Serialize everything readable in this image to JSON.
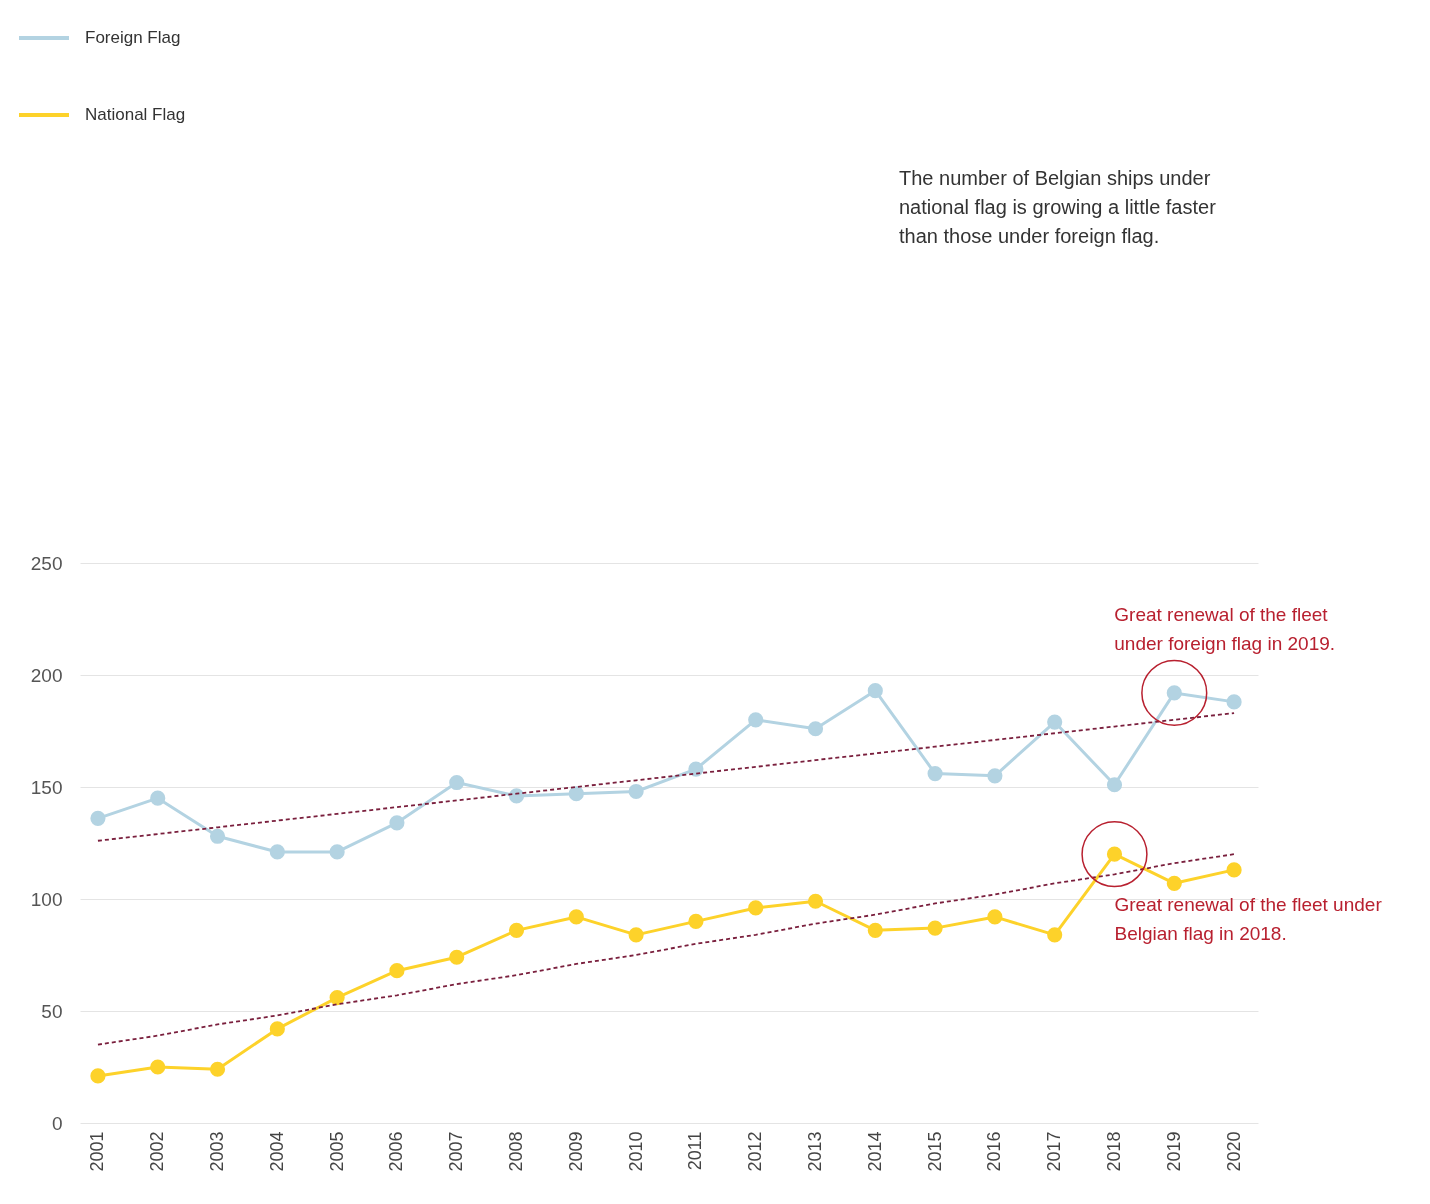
{
  "chart_data": {
    "type": "line",
    "x": [
      2001,
      2002,
      2003,
      2004,
      2005,
      2006,
      2007,
      2008,
      2009,
      2010,
      2011,
      2012,
      2013,
      2014,
      2015,
      2016,
      2017,
      2018,
      2019,
      2020
    ],
    "xlim": [
      2000.7,
      2020.4
    ],
    "xticks": [
      2001,
      2002,
      2003,
      2004,
      2005,
      2006,
      2007,
      2008,
      2009,
      2010,
      2011,
      2012,
      2013,
      2014,
      2015,
      2016,
      2017,
      2018,
      2019,
      2020
    ],
    "ylim": [
      0,
      250
    ],
    "yticks": [
      0,
      50,
      100,
      150,
      200,
      250
    ],
    "grid": "y",
    "legend": "top left",
    "marker": "circle",
    "line_style": "solid",
    "series": [
      {
        "name": "Foreign Flag",
        "color": "#b3d3e2",
        "values": [
          136,
          145,
          128,
          121,
          121,
          134,
          152,
          146,
          147,
          148,
          158,
          180,
          176,
          193,
          156,
          155,
          179,
          151,
          192,
          188
        ]
      },
      {
        "name": "National Flag",
        "color": "#fdd22a",
        "values": [
          21,
          25,
          24,
          42,
          56,
          68,
          74,
          86,
          92,
          84,
          90,
          96,
          99,
          86,
          87,
          92,
          84,
          120,
          107,
          113
        ]
      },
      {
        "type": "line",
        "values": [
          126,
          129,
          132,
          135,
          138,
          141,
          144,
          147,
          150,
          153,
          156,
          159,
          162,
          165,
          168,
          171,
          174,
          177,
          180,
          183
        ],
        "color": "#7a1f3d",
        "line_style": "dashed",
        "marker": "none"
      },
      {
        "type": "line",
        "values": [
          35,
          39,
          44,
          48,
          53,
          57,
          62,
          66,
          71,
          75,
          80,
          84,
          89,
          93,
          98,
          102,
          107,
          111,
          116,
          120
        ],
        "color": "#7a1f3d",
        "line_style": "dashed",
        "marker": "none"
      }
    ],
    "annotations": [
      "The number of Belgian ships under national flag is growing a little faster than those under foreign flag.",
      {
        "text": "Great renewal of the fleet under foreign flag in 2019.",
        "x": 2019,
        "y": 192
      },
      {
        "text": "Great renewal of the fleet under Belgian flag in 2018.",
        "x": 2018,
        "y": 120
      }
    ]
  }
}
